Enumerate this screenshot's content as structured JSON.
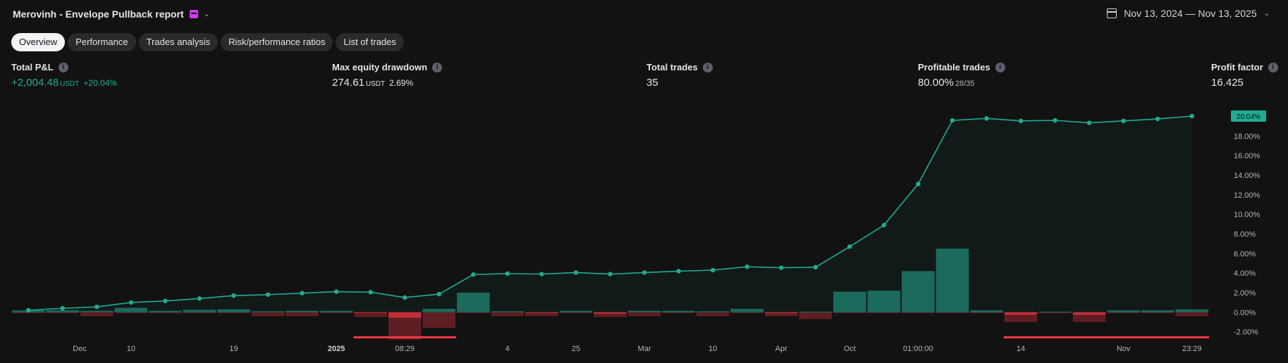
{
  "header": {
    "title": "Merovinh - Envelope Pullback report",
    "date_range": "Nov 13, 2024 — Nov 13, 2025"
  },
  "tabs": [
    {
      "label": "Overview",
      "active": true
    },
    {
      "label": "Performance",
      "active": false
    },
    {
      "label": "Trades analysis",
      "active": false
    },
    {
      "label": "Risk/performance ratios",
      "active": false
    },
    {
      "label": "List of trades",
      "active": false
    }
  ],
  "stats": {
    "total_pnl": {
      "label": "Total P&L",
      "value": "+2,004.48",
      "unit": "USDT",
      "pct": "+20.04%"
    },
    "max_drawdown": {
      "label": "Max equity drawdown",
      "value": "274.61",
      "unit": "USDT",
      "pct": "2.69%"
    },
    "total_trades": {
      "label": "Total trades",
      "value": "35"
    },
    "profitable_trades": {
      "label": "Profitable trades",
      "value": "80.00%",
      "sub": "28/35"
    },
    "profit_factor": {
      "label": "Profit factor",
      "value": "16.425"
    }
  },
  "colors": {
    "positive": "#22ab94",
    "negative": "#f23645",
    "background": "#121212"
  },
  "icons": [
    "flag-icon",
    "chevron-down-icon",
    "calendar-icon",
    "info-icon"
  ],
  "chart_data": {
    "type": "line",
    "y_ticks": [
      "20.04%",
      "18.00%",
      "16.00%",
      "14.00%",
      "12.00%",
      "10.00%",
      "8.00%",
      "6.00%",
      "4.00%",
      "2.00%",
      "0.00%",
      "-2.00%"
    ],
    "y_tick_values": [
      20.04,
      18,
      16,
      14,
      12,
      10,
      8,
      6,
      4,
      2,
      0,
      -2
    ],
    "ylim": [
      -2.6,
      20.4
    ],
    "x_ticks": [
      {
        "label": "Dec",
        "index": 1.5
      },
      {
        "label": "10",
        "index": 3
      },
      {
        "label": "19",
        "index": 6
      },
      {
        "label": "2025",
        "index": 9,
        "bold": true
      },
      {
        "label": "08:29",
        "index": 11
      },
      {
        "label": "4",
        "index": 14
      },
      {
        "label": "25",
        "index": 16
      },
      {
        "label": "Mar",
        "index": 18
      },
      {
        "label": "10",
        "index": 20
      },
      {
        "label": "Apr",
        "index": 22
      },
      {
        "label": "Oct",
        "index": 24
      },
      {
        "label": "01:00:00",
        "index": 26
      },
      {
        "label": "14",
        "index": 29
      },
      {
        "label": "Nov",
        "index": 32
      },
      {
        "label": "23:29",
        "index": 34
      }
    ],
    "equity": [
      0.2,
      0.4,
      0.55,
      1.0,
      1.15,
      1.4,
      1.7,
      1.8,
      1.95,
      2.1,
      2.05,
      1.5,
      1.85,
      3.85,
      3.95,
      3.9,
      4.05,
      3.9,
      4.05,
      4.2,
      4.3,
      4.65,
      4.55,
      4.6,
      6.7,
      8.9,
      13.1,
      19.6,
      19.8,
      19.55,
      19.6,
      19.35,
      19.55,
      19.75,
      20.04
    ],
    "trade_returns": [
      0.2,
      0.2,
      0.15,
      0.45,
      0.15,
      0.25,
      0.3,
      0.1,
      0.15,
      0.15,
      -0.05,
      -0.55,
      0.35,
      2.0,
      0.1,
      -0.05,
      0.15,
      -0.15,
      0.15,
      0.15,
      0.1,
      0.35,
      -0.1,
      0.05,
      2.1,
      2.2,
      4.2,
      6.5,
      0.2,
      -0.25,
      0.05,
      -0.25,
      0.2,
      0.2,
      0.3
    ],
    "trade_max_adverse": [
      -0.1,
      -0.1,
      -0.4,
      -0.1,
      -0.1,
      -0.1,
      -0.1,
      -0.4,
      -0.4,
      -0.1,
      -0.5,
      -2.8,
      -1.6,
      -0.1,
      -0.4,
      -0.4,
      -0.1,
      -0.5,
      -0.4,
      -0.1,
      -0.4,
      -0.1,
      -0.4,
      -0.7,
      -0.1,
      -0.1,
      -0.1,
      -0.1,
      -0.1,
      -1.0,
      -0.1,
      -1.0,
      -0.1,
      -0.1,
      -0.4
    ],
    "drawdown_bars": [
      {
        "from_index": 9.5,
        "to_index": 12.5,
        "value": -2.6
      },
      {
        "from_index": 28.5,
        "to_index": 34.5,
        "value": -2.6
      }
    ],
    "last_label": "20.04%",
    "grid": false,
    "legend": "none"
  }
}
